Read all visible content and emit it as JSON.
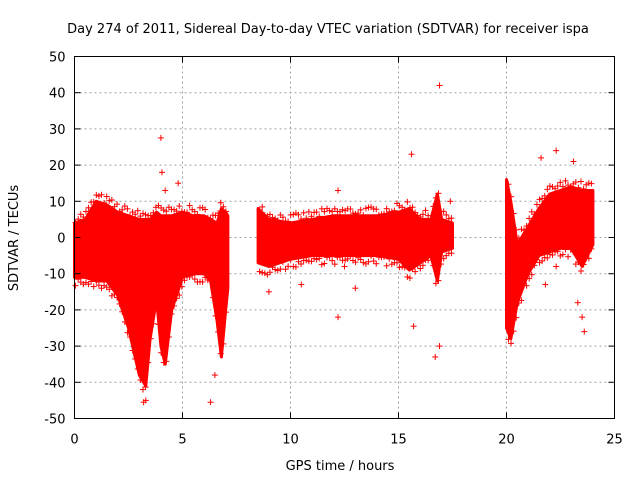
{
  "chart_data": {
    "type": "scatter",
    "title": "Day 274 of 2011, Sidereal Day-to-day VTEC variation (SDTVAR) for receiver ispa",
    "xlabel": "GPS time / hours",
    "ylabel": "SDTVAR / TECUs",
    "xlim": [
      0,
      25
    ],
    "ylim": [
      -50,
      50
    ],
    "xticks": [
      0,
      5,
      10,
      15,
      20,
      25
    ],
    "yticks": [
      -50,
      -40,
      -30,
      -20,
      -10,
      0,
      10,
      20,
      30,
      40,
      50
    ],
    "grid": true,
    "marker": "+",
    "color": "#ff0000",
    "envelope": {
      "x": [
        0.0,
        0.5,
        1.0,
        1.5,
        2.0,
        2.5,
        3.0,
        3.3,
        3.5,
        3.8,
        4.0,
        4.2,
        4.5,
        5.0,
        5.5,
        6.0,
        6.3,
        6.6,
        6.8,
        7.0,
        7.1,
        8.5,
        9.0,
        10.0,
        11.0,
        12.0,
        13.0,
        14.0,
        15.0,
        15.5,
        16.0,
        16.5,
        16.8,
        17.0,
        17.5,
        20.0,
        20.2,
        20.5,
        21.0,
        21.5,
        22.0,
        22.5,
        23.0,
        23.5,
        24.0
      ],
      "upper": [
        4,
        5,
        10,
        9,
        7,
        6,
        5,
        5,
        5,
        7,
        6,
        6,
        6,
        7,
        6,
        6,
        5,
        4,
        8,
        7,
        6,
        8,
        5,
        4,
        5,
        6,
        6,
        6,
        7,
        8,
        5,
        5,
        12,
        5,
        4,
        16,
        10,
        -2,
        3,
        8,
        12,
        13,
        14,
        13,
        13
      ],
      "lower": [
        -11,
        -11,
        -12,
        -12,
        -16,
        -25,
        -38,
        -41,
        -28,
        -17,
        -30,
        -35,
        -20,
        -11,
        -10,
        -10,
        -12,
        -23,
        -33,
        -20,
        -14,
        -7,
        -8,
        -6,
        -5,
        -5,
        -5,
        -5,
        -6,
        -9,
        -7,
        -5,
        -12,
        -4,
        -3,
        -25,
        -28,
        -18,
        -10,
        -5,
        -4,
        -3,
        -3,
        -8,
        -2
      ]
    },
    "outliers": [
      {
        "x": 4.0,
        "y": 27.5
      },
      {
        "x": 4.05,
        "y": 18
      },
      {
        "x": 4.2,
        "y": 13
      },
      {
        "x": 4.8,
        "y": 15
      },
      {
        "x": 3.3,
        "y": -45
      },
      {
        "x": 3.2,
        "y": -45.5
      },
      {
        "x": 6.3,
        "y": -45.5
      },
      {
        "x": 6.5,
        "y": -38
      },
      {
        "x": 15.6,
        "y": 23
      },
      {
        "x": 16.9,
        "y": 42
      },
      {
        "x": 15.7,
        "y": -24.5
      },
      {
        "x": 16.7,
        "y": -33
      },
      {
        "x": 16.9,
        "y": -30
      },
      {
        "x": 12.2,
        "y": 13
      },
      {
        "x": 12.2,
        "y": -22
      },
      {
        "x": 10.5,
        "y": -13
      },
      {
        "x": 22.3,
        "y": 24
      },
      {
        "x": 21.6,
        "y": 22
      },
      {
        "x": 23.1,
        "y": 21
      },
      {
        "x": 22.3,
        "y": -8
      },
      {
        "x": 21.8,
        "y": -13
      },
      {
        "x": 23.3,
        "y": -18
      },
      {
        "x": 23.5,
        "y": -22
      },
      {
        "x": 23.6,
        "y": -26
      },
      {
        "x": 17.4,
        "y": 10
      },
      {
        "x": 13.0,
        "y": -14
      },
      {
        "x": 9.0,
        "y": -15
      },
      {
        "x": 12.5,
        "y": -8
      }
    ]
  }
}
